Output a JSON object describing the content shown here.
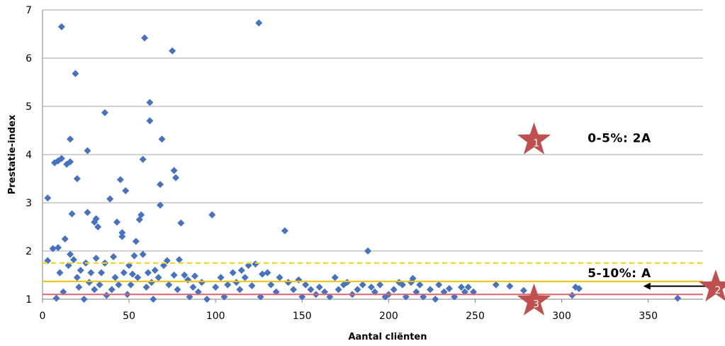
{
  "chart_data": {
    "type": "scatter",
    "title": "",
    "xlabel": "Aantal cliënten",
    "ylabel": "Prestatie-index",
    "xlim": [
      0,
      380
    ],
    "ylim": [
      1,
      7
    ],
    "x_ticks": [
      "0",
      "50",
      "100",
      "150",
      "200",
      "250",
      "300",
      "350"
    ],
    "y_ticks": [
      "1",
      "2",
      "3",
      "4",
      "5",
      "6",
      "7"
    ],
    "grid": "horizontal",
    "marker": "diamond",
    "colors": {
      "points": "#4472c4",
      "dashed_line": "#ffd700",
      "solid_line": "#f5c400",
      "red_line": "#e8606a",
      "stars": "#c0504d",
      "grid": "#a6a6a6"
    },
    "reference_lines": [
      {
        "y": 1.75,
        "style": "dashed",
        "color": "#ffd700"
      },
      {
        "y": 1.37,
        "style": "solid",
        "color": "#f5c400"
      },
      {
        "y": 1.1,
        "style": "solid",
        "color": "#e8606a"
      }
    ],
    "annotations": [
      {
        "text": "0-5%: 2A",
        "x": 315,
        "y": 4.36
      },
      {
        "text": "5-10%: A",
        "x": 315,
        "y": 1.56
      }
    ],
    "stars": [
      {
        "label": "1",
        "x": 284,
        "y": 4.3
      },
      {
        "label": "2",
        "x": 389,
        "y": 1.25
      },
      {
        "label": "3",
        "x": 284,
        "y": 0.96
      }
    ],
    "arrow": {
      "x_from": 348,
      "x_to": 388,
      "y": 1.27,
      "style": "double-headed"
    },
    "points": [
      [
        3,
        3.1
      ],
      [
        3,
        1.8
      ],
      [
        6,
        2.05
      ],
      [
        7,
        3.83
      ],
      [
        8,
        1.02
      ],
      [
        9,
        3.87
      ],
      [
        9,
        2.07
      ],
      [
        10,
        1.55
      ],
      [
        11,
        3.92
      ],
      [
        11,
        6.65
      ],
      [
        12,
        1.15
      ],
      [
        13,
        2.25
      ],
      [
        14,
        3.8
      ],
      [
        15,
        1.7
      ],
      [
        16,
        3.85
      ],
      [
        16,
        4.32
      ],
      [
        16,
        1.93
      ],
      [
        17,
        2.77
      ],
      [
        18,
        1.82
      ],
      [
        19,
        5.68
      ],
      [
        20,
        3.5
      ],
      [
        20,
        1.45
      ],
      [
        21,
        1.25
      ],
      [
        22,
        1.6
      ],
      [
        24,
        1.0
      ],
      [
        25,
        1.75
      ],
      [
        26,
        4.08
      ],
      [
        26,
        2.8
      ],
      [
        27,
        1.35
      ],
      [
        28,
        1.55
      ],
      [
        30,
        2.6
      ],
      [
        30,
        1.2
      ],
      [
        31,
        2.67
      ],
      [
        31,
        1.85
      ],
      [
        32,
        2.5
      ],
      [
        33,
        1.3
      ],
      [
        34,
        1.55
      ],
      [
        36,
        4.87
      ],
      [
        36,
        1.75
      ],
      [
        37,
        1.08
      ],
      [
        39,
        3.08
      ],
      [
        40,
        1.2
      ],
      [
        41,
        1.88
      ],
      [
        42,
        1.45
      ],
      [
        43,
        2.6
      ],
      [
        44,
        1.3
      ],
      [
        45,
        3.48
      ],
      [
        46,
        2.38
      ],
      [
        46,
        2.3
      ],
      [
        47,
        1.55
      ],
      [
        48,
        3.25
      ],
      [
        49,
        1.1
      ],
      [
        50,
        1.7
      ],
      [
        51,
        1.3
      ],
      [
        52,
        1.52
      ],
      [
        53,
        1.9
      ],
      [
        54,
        2.2
      ],
      [
        55,
        1.45
      ],
      [
        56,
        2.65
      ],
      [
        57,
        2.75
      ],
      [
        58,
        3.9
      ],
      [
        58,
        1.93
      ],
      [
        59,
        6.42
      ],
      [
        60,
        1.25
      ],
      [
        61,
        1.55
      ],
      [
        62,
        4.7
      ],
      [
        62,
        5.08
      ],
      [
        63,
        1.35
      ],
      [
        64,
        1.0
      ],
      [
        65,
        1.6
      ],
      [
        67,
        1.45
      ],
      [
        68,
        2.95
      ],
      [
        68,
        3.38
      ],
      [
        69,
        4.32
      ],
      [
        70,
        1.7
      ],
      [
        72,
        1.8
      ],
      [
        73,
        1.3
      ],
      [
        75,
        6.15
      ],
      [
        76,
        3.67
      ],
      [
        76,
        1.5
      ],
      [
        77,
        3.52
      ],
      [
        78,
        1.2
      ],
      [
        79,
        1.82
      ],
      [
        80,
        2.58
      ],
      [
        82,
        1.5
      ],
      [
        84,
        1.4
      ],
      [
        85,
        1.05
      ],
      [
        87,
        1.25
      ],
      [
        88,
        1.48
      ],
      [
        90,
        1.15
      ],
      [
        92,
        1.35
      ],
      [
        95,
        1.0
      ],
      [
        98,
        2.75
      ],
      [
        100,
        1.25
      ],
      [
        103,
        1.45
      ],
      [
        105,
        1.05
      ],
      [
        107,
        1.3
      ],
      [
        110,
        1.55
      ],
      [
        112,
        1.35
      ],
      [
        114,
        1.2
      ],
      [
        115,
        1.6
      ],
      [
        117,
        1.45
      ],
      [
        119,
        1.7
      ],
      [
        121,
        1.28
      ],
      [
        123,
        1.73
      ],
      [
        125,
        6.73
      ],
      [
        126,
        1.05
      ],
      [
        127,
        1.52
      ],
      [
        130,
        1.55
      ],
      [
        132,
        1.3
      ],
      [
        135,
        1.15
      ],
      [
        137,
        1.45
      ],
      [
        140,
        2.42
      ],
      [
        142,
        1.35
      ],
      [
        145,
        1.2
      ],
      [
        148,
        1.4
      ],
      [
        150,
        1.05
      ],
      [
        152,
        1.3
      ],
      [
        155,
        1.2
      ],
      [
        158,
        1.1
      ],
      [
        160,
        1.25
      ],
      [
        163,
        1.15
      ],
      [
        166,
        1.05
      ],
      [
        169,
        1.45
      ],
      [
        171,
        1.2
      ],
      [
        174,
        1.3
      ],
      [
        176,
        1.35
      ],
      [
        179,
        1.1
      ],
      [
        182,
        1.2
      ],
      [
        185,
        1.3
      ],
      [
        188,
        2.0
      ],
      [
        190,
        1.25
      ],
      [
        192,
        1.15
      ],
      [
        195,
        1.3
      ],
      [
        198,
        1.05
      ],
      [
        200,
        1.1
      ],
      [
        203,
        1.2
      ],
      [
        206,
        1.35
      ],
      [
        208,
        1.3
      ],
      [
        210,
        1.05
      ],
      [
        213,
        1.35
      ],
      [
        214,
        1.43
      ],
      [
        216,
        1.15
      ],
      [
        218,
        1.3
      ],
      [
        220,
        1.05
      ],
      [
        224,
        1.2
      ],
      [
        227,
        1.0
      ],
      [
        229,
        1.3
      ],
      [
        232,
        1.15
      ],
      [
        235,
        1.22
      ],
      [
        238,
        1.05
      ],
      [
        242,
        1.25
      ],
      [
        244,
        1.15
      ],
      [
        246,
        1.25
      ],
      [
        249,
        1.15
      ],
      [
        262,
        1.3
      ],
      [
        270,
        1.27
      ],
      [
        278,
        1.18
      ],
      [
        306,
        1.08
      ],
      [
        308,
        1.25
      ],
      [
        310,
        1.22
      ],
      [
        367,
        1.02
      ]
    ]
  }
}
